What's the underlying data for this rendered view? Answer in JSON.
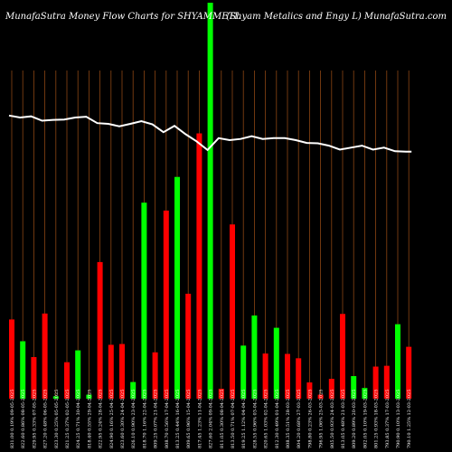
{
  "chart_data": {
    "type": "bar",
    "title": "MunafaSutra  Money Flow  Charts for SHYAMMETL",
    "subtitle": "(Shyam Metalics and Engy L) MunafaSutra.com",
    "colors": {
      "background": "#000000",
      "up": "#00ff00",
      "down": "#ff0000",
      "grid": "#8b4513",
      "line": "#ffffff"
    },
    "ylim": [
      0,
      100
    ],
    "categories": [
      "831.00 0.19% 09-05-2025",
      "822.60 0.86% 08-05-2025",
      "829.95 0.33% 07-05-2025",
      "827.20 0.48% 06-05-2025",
      "823.30 0.25% 05-05-2025",
      "821.25 0.37% 02-05-2025",
      "824.25 0.71% 30-04-2025",
      "818.40 0.55% 29-04-2025",
      "822.95 0.24% 28-04-2025",
      "824.90 0.16% 25-04-2025",
      "823.60 0.30% 24-04-2025",
      "826.10 0.90% 23-04-2025",
      "818.70 1.16% 22-04-2025",
      "809.25 0.07% 21-04-2025",
      "808.70 0.56% 17-04-2025",
      "813.25 0.44% 16-04-2025",
      "809.65 0.96% 15-04-2025",
      "817.45 1.23% 11-04-2025",
      "827.60 2.04% 09-04-2025",
      "811.05 0.30% 08-04-2025",
      "813.50 0.71% 07-04-2025",
      "819.25 1.12% 04-04-2025",
      "828.55 0.96% 03-04-2025",
      "820.65 1.03% 02-04-2025",
      "812.30 0.49% 01-04-2025",
      "808.35 0.51% 28-03-2025",
      "804.20 0.68% 27-03-2025",
      "798.80 0.23% 26-03-2025",
      "796.95 1.06% 25-03-2025",
      "805.50 0.93% 24-03-2025",
      "813.05 0.48% 21-03-2025",
      "809.20 0.89% 20-03-2025",
      "802.05 0.10% 19-03-2025",
      "801.25 0.93% 18-03-2025",
      "793.85 0.37% 17-03-2025",
      "790.90 0.10% 13-03-2025",
      "790.10 1.25% 12-03-2025"
    ],
    "values": [
      20,
      14.5,
      10.5,
      21.5,
      0.6,
      9.2,
      12.2,
      1.0,
      34.5,
      13.6,
      13.8,
      4.2,
      49.5,
      11.7,
      47.5,
      56,
      26.5,
      67,
      100,
      2.5,
      44,
      13.4,
      21,
      11.4,
      17.9,
      11.3,
      10.2,
      4.1,
      1.0,
      5.0,
      21.4,
      5.7,
      2.7,
      8.1,
      8.3,
      18.8,
      13.1
    ],
    "directions": [
      "down",
      "up",
      "down",
      "down",
      "up",
      "down",
      "up",
      "up",
      "down",
      "down",
      "down",
      "up",
      "up",
      "down",
      "down",
      "up",
      "down",
      "down",
      "up",
      "down",
      "down",
      "up",
      "up",
      "down",
      "up",
      "down",
      "down",
      "down",
      "down",
      "down",
      "down",
      "up",
      "up",
      "down",
      "down",
      "up",
      "down"
    ],
    "price_line": [
      71.5,
      71.0,
      71.3,
      70.2,
      70.4,
      70.5,
      71.0,
      71.2,
      69.6,
      69.4,
      68.8,
      69.4,
      70.1,
      69.3,
      67.3,
      68.9,
      66.8,
      65.0,
      62.8,
      65.8,
      65.3,
      65.6,
      66.3,
      65.6,
      65.8,
      65.8,
      65.3,
      64.6,
      64.5,
      63.9,
      62.9,
      63.4,
      63.9,
      62.9,
      63.4,
      62.5,
      62.4
    ]
  }
}
